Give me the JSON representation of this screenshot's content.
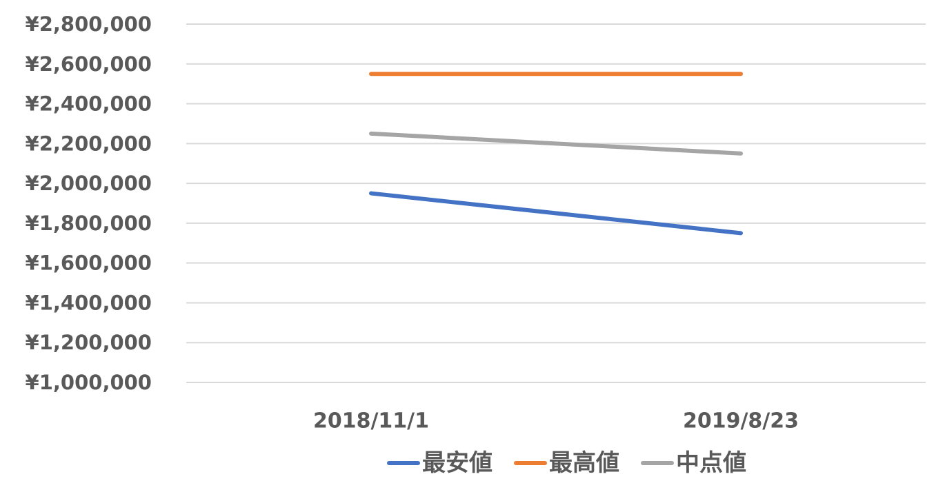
{
  "chart_data": {
    "type": "line",
    "title": "",
    "xlabel": "",
    "ylabel": "",
    "categories": [
      "2018/11/1",
      "2019/8/23"
    ],
    "series": [
      {
        "name": "最安値",
        "color": "#4472C4",
        "values": [
          1950000,
          1750000
        ]
      },
      {
        "name": "最高値",
        "color": "#ED7D31",
        "values": [
          2550000,
          2550000
        ]
      },
      {
        "name": "中点値",
        "color": "#A5A5A5",
        "values": [
          2250000,
          2150000
        ]
      }
    ],
    "ylim": [
      1000000,
      2800000
    ],
    "yticks": [
      1000000,
      1200000,
      1400000,
      1600000,
      1800000,
      2000000,
      2200000,
      2400000,
      2600000,
      2800000
    ],
    "ytick_labels": [
      "¥1,000,000",
      "¥1,200,000",
      "¥1,400,000",
      "¥1,600,000",
      "¥1,800,000",
      "¥2,000,000",
      "¥2,200,000",
      "¥2,400,000",
      "¥2,600,000",
      "¥2,800,000"
    ],
    "grid": true,
    "legend": "bottom",
    "gridline_color": "#D9D9D9",
    "text_color": "#595959"
  }
}
